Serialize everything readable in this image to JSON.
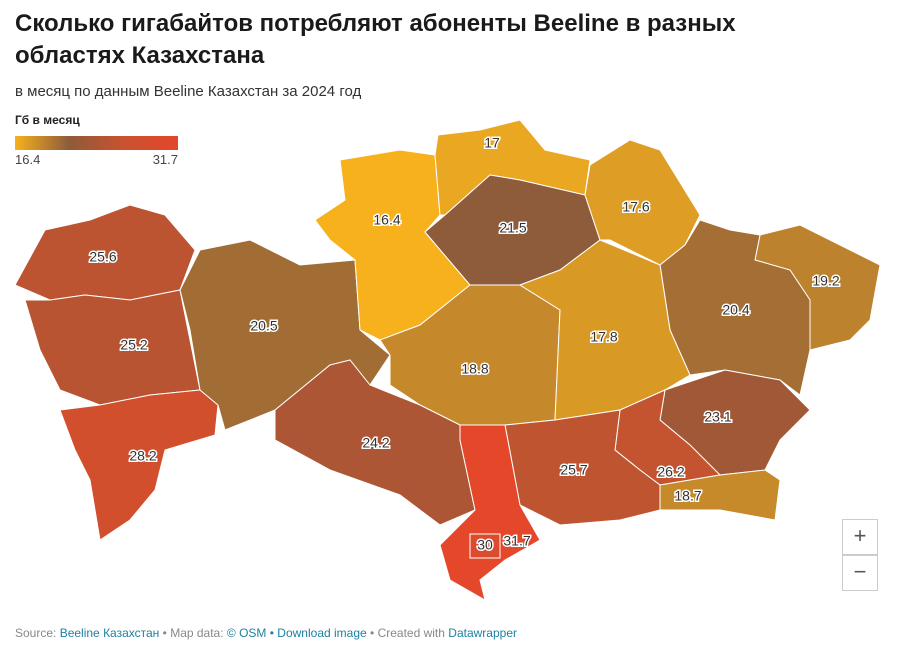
{
  "header": {
    "title_lines": [
      "Сколько гигабайтов потребляют абоненты Beeline в разных",
      "областях Казахстана"
    ],
    "subtitle": "в месяц по данным Beeline Казахстан за 2024 год"
  },
  "legend": {
    "title": "Гб в месяц",
    "min": 16.4,
    "max": 31.7,
    "colors": [
      "#f6b11d",
      "#8e5b3b",
      "#c9522f",
      "#e4472a"
    ]
  },
  "regions": [
    25.6,
    25.2,
    28.2,
    20.5,
    16.4,
    17,
    21.5,
    17.6,
    19.2,
    20.4,
    18.8,
    17.8,
    24.2,
    23.1,
    26.2,
    18.7,
    25.7,
    31.7,
    30
  ],
  "zoom": {
    "in": "+",
    "out": "−"
  },
  "footer": {
    "source_label": "Source:",
    "source": "Beeline Казахстан",
    "map_label": "• Map data:",
    "map": "© OSM",
    "download": "• Download image",
    "created_label": "• Created with",
    "created": "Datawrapper"
  }
}
